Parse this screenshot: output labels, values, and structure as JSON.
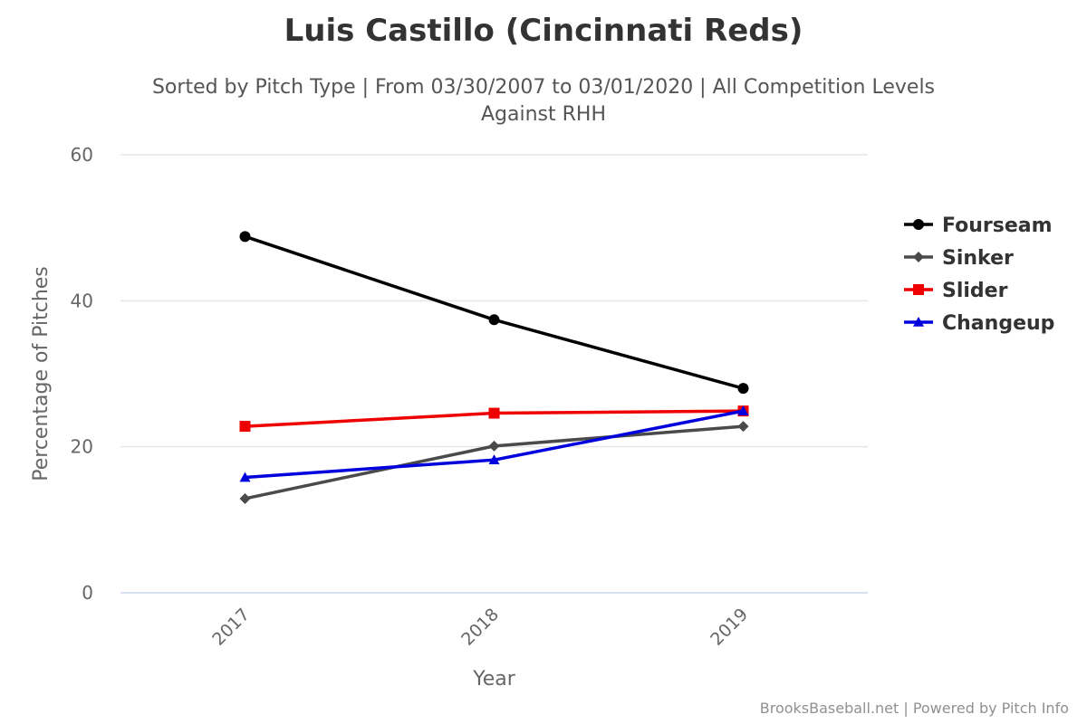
{
  "chart_data": {
    "type": "line",
    "title": "Luis Castillo (Cincinnati Reds)",
    "subtitle_line1": "Sorted by Pitch Type | From 03/30/2007 to 03/01/2020 | All Competition Levels",
    "subtitle_line2": "Against RHH",
    "xlabel": "Year",
    "ylabel": "Percentage of Pitches",
    "categories": [
      "2017",
      "2018",
      "2019"
    ],
    "ylim": [
      0,
      60
    ],
    "yticks": [
      0,
      20,
      40,
      60
    ],
    "grid": true,
    "legend_position": "right",
    "series": [
      {
        "name": "Fourseam",
        "color": "#000000",
        "marker": "circle",
        "values": [
          48.8,
          37.4,
          28.0
        ]
      },
      {
        "name": "Sinker",
        "color": "#4a4a4a",
        "marker": "diamond",
        "values": [
          12.9,
          20.1,
          22.8
        ]
      },
      {
        "name": "Slider",
        "color": "#ee0000",
        "marker": "square",
        "values": [
          22.8,
          24.6,
          24.9
        ]
      },
      {
        "name": "Changeup",
        "color": "#0000dd",
        "marker": "triangle",
        "values": [
          15.8,
          18.2,
          24.9
        ]
      }
    ]
  },
  "credits": "BrooksBaseball.net | Powered by Pitch Info"
}
